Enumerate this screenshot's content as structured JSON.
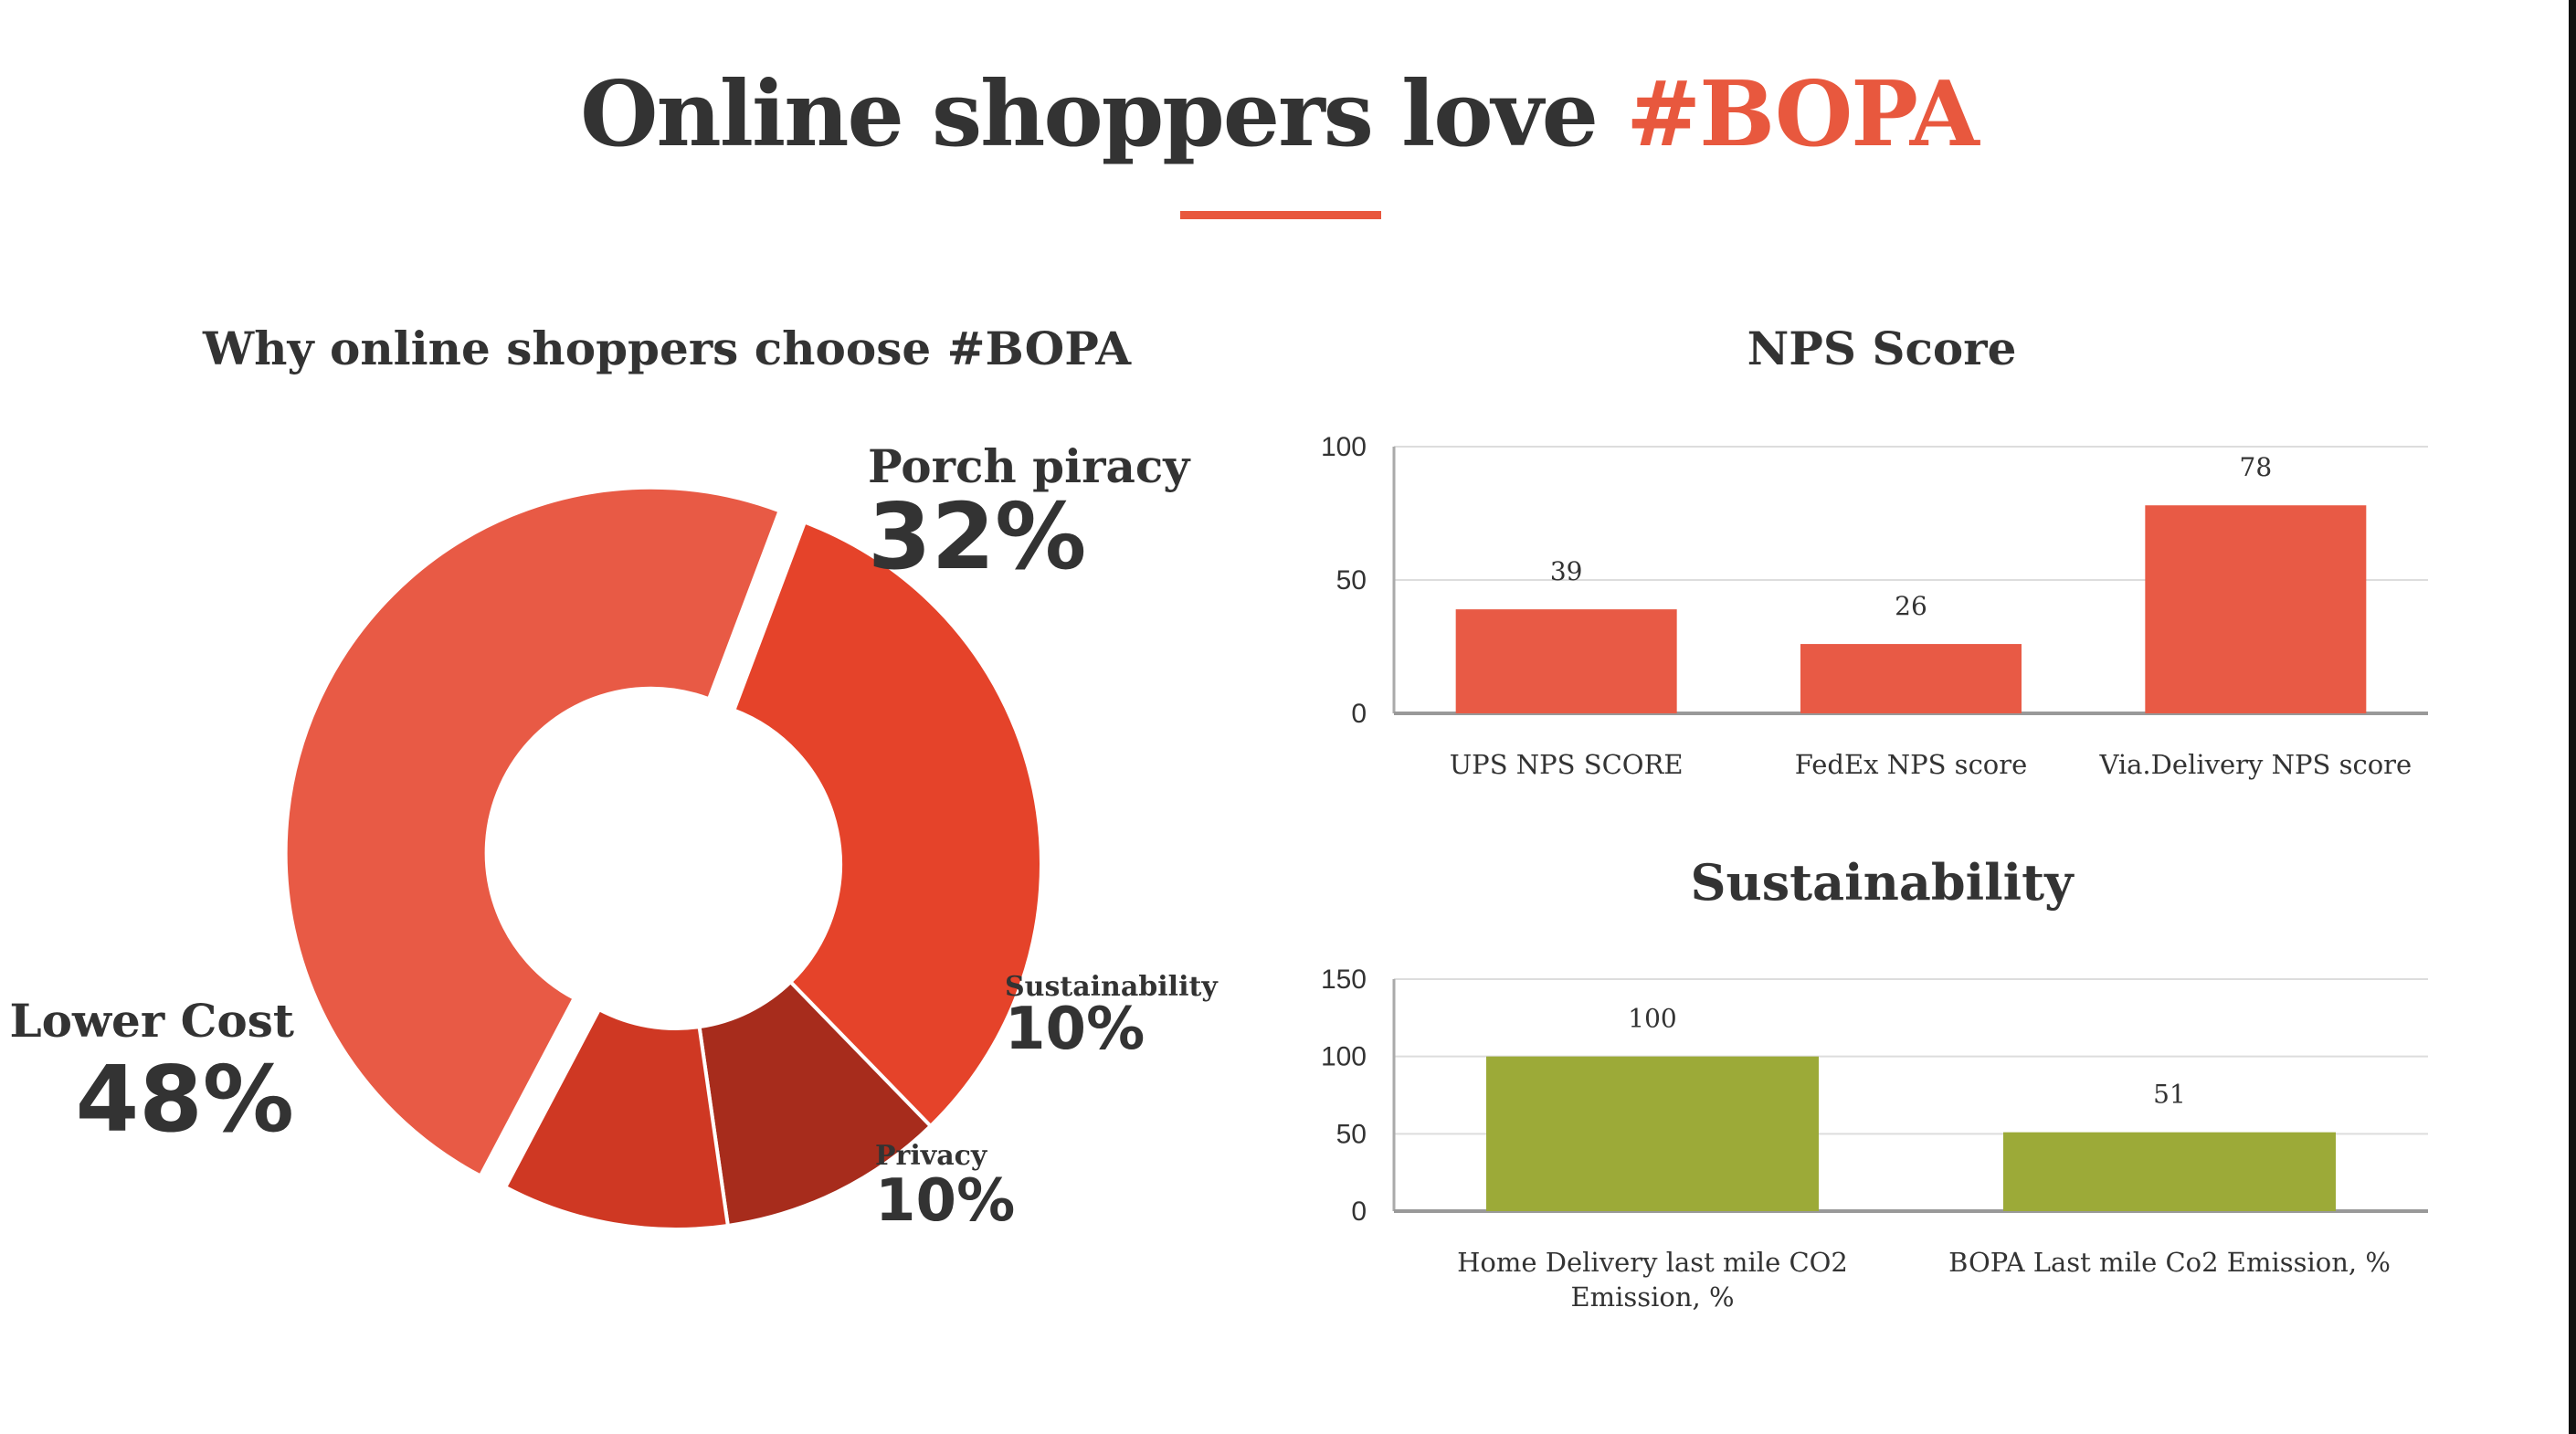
{
  "page": {
    "title_prefix": "Online shoppers love ",
    "title_highlight": "#BOPA",
    "accent_color": "#e8583e"
  },
  "chart_data": [
    {
      "type": "pie",
      "title": "Why online shoppers choose #BOPA",
      "donut": true,
      "slices": [
        {
          "name": "Porch piracy",
          "value": 32,
          "label": "32%",
          "color": "#e5432a"
        },
        {
          "name": "Sustainability",
          "value": 10,
          "label": "10%",
          "color": "#a72c1c"
        },
        {
          "name": "Privacy",
          "value": 10,
          "label": "10%",
          "color": "#cf3823"
        },
        {
          "name": "Lower Cost",
          "value": 48,
          "label": "48%",
          "color": "#e85a45"
        }
      ]
    },
    {
      "type": "bar",
      "title": "NPS Score",
      "categories": [
        "UPS NPS SCORE",
        "FedEx NPS score",
        "Via.Delivery NPS score"
      ],
      "values": [
        39,
        26,
        78
      ],
      "ylim": [
        0,
        100
      ],
      "yticks": [
        0,
        50,
        100
      ],
      "grid": true,
      "bar_color": "#e85a45"
    },
    {
      "type": "bar",
      "title": "Sustainability",
      "categories": [
        [
          "Home Delivery last mile CO2",
          "Emission, %"
        ],
        [
          "BOPA Last mile Co2 Emission, %"
        ]
      ],
      "values": [
        100,
        51
      ],
      "ylim": [
        0,
        150
      ],
      "yticks": [
        0,
        50,
        100,
        150
      ],
      "grid": true,
      "bar_color": "#9caa38"
    }
  ]
}
